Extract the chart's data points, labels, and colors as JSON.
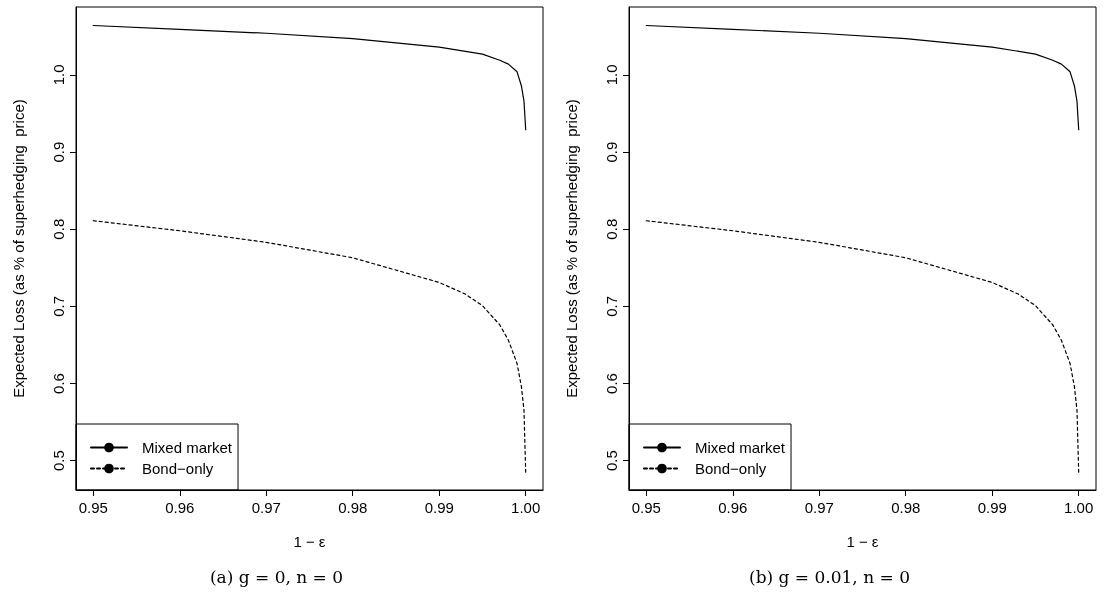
{
  "chart_data": [
    {
      "type": "line",
      "title": "(a) g = 0, n = 0",
      "xlabel": "1 − ε",
      "ylabel": "Expected Loss (as % of superhedging  price)",
      "x": [
        0.95,
        0.96,
        0.97,
        0.98,
        0.99,
        0.995,
        0.997,
        0.998,
        0.999,
        0.9995,
        0.9998,
        1.0
      ],
      "xlim": [
        0.948,
        1.002
      ],
      "xticks": [
        {
          "value": 0.95,
          "label": "0.95"
        },
        {
          "value": 0.96,
          "label": "0.96"
        },
        {
          "value": 0.97,
          "label": "0.97"
        },
        {
          "value": 0.98,
          "label": "0.98"
        },
        {
          "value": 0.99,
          "label": "0.99"
        },
        {
          "value": 1.0,
          "label": "1.00"
        }
      ],
      "ylim": [
        0.462,
        1.088
      ],
      "yticks": [
        0.5,
        0.6,
        0.7,
        0.8,
        0.9,
        {
          "value": 1.0,
          "label": "1.0"
        }
      ],
      "grid": false,
      "legend": "bottom left",
      "marker": "none",
      "series": [
        {
          "name": "Mixed market",
          "color": "#000000",
          "line_style": "solid",
          "values": [
            1.064,
            1.059,
            1.054,
            1.047,
            1.036,
            1.027,
            1.019,
            1.014,
            1.004,
            0.986,
            0.966,
            0.929
          ]
        },
        {
          "name": "Bond−only",
          "color": "#000000",
          "line_style": "dotted",
          "x": [
            0.95,
            0.96,
            0.97,
            0.98,
            0.99,
            0.993,
            0.995,
            0.997,
            0.998,
            0.999,
            0.9995,
            0.9998,
            1.0
          ],
          "values": [
            0.811,
            0.798,
            0.783,
            0.763,
            0.731,
            0.716,
            0.701,
            0.676,
            0.656,
            0.626,
            0.596,
            0.566,
            0.484
          ]
        }
      ]
    },
    {
      "type": "line",
      "title": "(b) g = 0.01, n = 0",
      "xlabel": "1 − ε",
      "ylabel": "Expected Loss (as % of superhedging  price)",
      "x": [
        0.95,
        0.96,
        0.97,
        0.98,
        0.99,
        0.995,
        0.997,
        0.998,
        0.999,
        0.9995,
        0.9998,
        1.0
      ],
      "xlim": [
        0.948,
        1.002
      ],
      "xticks": [
        {
          "value": 0.95,
          "label": "0.95"
        },
        {
          "value": 0.96,
          "label": "0.96"
        },
        {
          "value": 0.97,
          "label": "0.97"
        },
        {
          "value": 0.98,
          "label": "0.98"
        },
        {
          "value": 0.99,
          "label": "0.99"
        },
        {
          "value": 1.0,
          "label": "1.00"
        }
      ],
      "ylim": [
        0.462,
        1.088
      ],
      "yticks": [
        0.5,
        0.6,
        0.7,
        0.8,
        0.9,
        {
          "value": 1.0,
          "label": "1.0"
        }
      ],
      "grid": false,
      "legend": "bottom left",
      "marker": "none",
      "series": [
        {
          "name": "Mixed market",
          "color": "#000000",
          "line_style": "solid",
          "values": [
            1.064,
            1.059,
            1.054,
            1.047,
            1.036,
            1.027,
            1.019,
            1.014,
            1.004,
            0.986,
            0.966,
            0.929
          ]
        },
        {
          "name": "Bond−only",
          "color": "#000000",
          "line_style": "dotted",
          "x": [
            0.95,
            0.96,
            0.97,
            0.98,
            0.99,
            0.993,
            0.995,
            0.997,
            0.998,
            0.999,
            0.9995,
            0.9998,
            1.0
          ],
          "values": [
            0.811,
            0.798,
            0.783,
            0.763,
            0.731,
            0.716,
            0.701,
            0.676,
            0.656,
            0.626,
            0.596,
            0.566,
            0.484
          ]
        }
      ]
    }
  ]
}
